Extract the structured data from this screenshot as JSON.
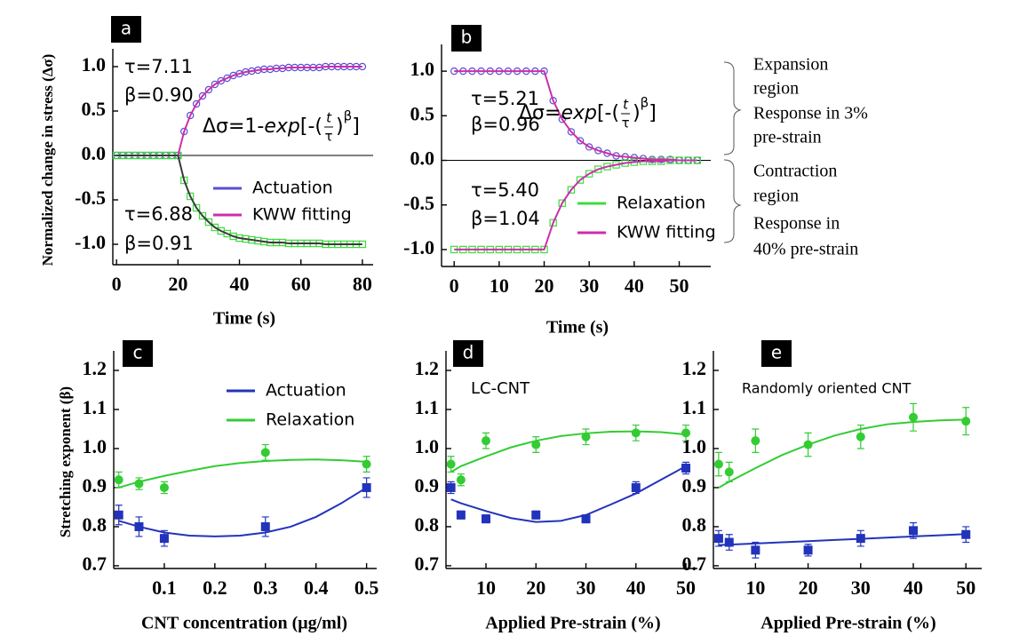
{
  "chart_data": [
    {
      "type": "line",
      "panel_label": "a",
      "ylabel": "Normalized change in stress (Δσ)",
      "xlabel": "Time (s)",
      "xlim": [
        -1.2,
        83.5
      ],
      "ylim": [
        -1.23,
        1.2
      ],
      "xticks": [
        0,
        20,
        40,
        60,
        80
      ],
      "yticks": [
        {
          "value": 1,
          "label": "1.0"
        },
        0.5,
        {
          "value": 0,
          "label": "0.0"
        },
        -0.5,
        {
          "value": -1,
          "label": "-1.0"
        }
      ],
      "zero_line": true,
      "annotations": [
        "τ=7.11",
        "β=0.90",
        "τ=6.88",
        "β=0.91"
      ],
      "equation": {
        "lead": "Δσ=1-",
        "func": "exp",
        "open": "[-(",
        "num": "t",
        "den": "τ",
        "close": ")",
        "power": "β",
        "end": "]"
      },
      "x": [
        0,
        2,
        4,
        6,
        8,
        10,
        12,
        14,
        16,
        18,
        20,
        22,
        24,
        26,
        28,
        30,
        32,
        34,
        36,
        38,
        40,
        42,
        44,
        46,
        48,
        50,
        52,
        54,
        56,
        58,
        60,
        62,
        64,
        66,
        68,
        70,
        72,
        74,
        76,
        78,
        80
      ],
      "series": [
        {
          "name": "Actuation",
          "color": "#5a4fd6",
          "marker": "circle",
          "open": true,
          "values": [
            0,
            0,
            0,
            0,
            0,
            0,
            0,
            0,
            0,
            0,
            0,
            0.27,
            0.45,
            0.58,
            0.67,
            0.74,
            0.8,
            0.84,
            0.87,
            0.9,
            0.92,
            0.94,
            0.95,
            0.96,
            0.97,
            0.97,
            0.98,
            0.98,
            0.99,
            0.99,
            0.99,
            0.99,
            0.99,
            0.99,
            1,
            1,
            1,
            1,
            1,
            1,
            1
          ]
        },
        {
          "name": "KWW fitting",
          "color": "#cc2fa8",
          "line": true,
          "values": [
            0,
            0,
            0,
            0,
            0,
            0,
            0,
            0,
            0,
            0,
            0,
            0.27,
            0.45,
            0.58,
            0.67,
            0.74,
            0.8,
            0.84,
            0.87,
            0.9,
            0.92,
            0.94,
            0.95,
            0.96,
            0.97,
            0.97,
            0.98,
            0.98,
            0.99,
            0.99,
            0.99,
            0.99,
            0.99,
            0.99,
            1,
            1,
            1,
            1,
            1,
            1,
            1
          ]
        },
        {
          "color": "#3ddc3d",
          "marker": "square",
          "open": true,
          "values": [
            0,
            0,
            0,
            0,
            0,
            0,
            0,
            0,
            0,
            0,
            0,
            -0.28,
            -0.46,
            -0.59,
            -0.68,
            -0.75,
            -0.81,
            -0.85,
            -0.88,
            -0.91,
            -0.93,
            -0.94,
            -0.95,
            -0.96,
            -0.97,
            -0.98,
            -0.98,
            -0.98,
            -0.99,
            -0.99,
            -0.99,
            -0.99,
            -0.99,
            -0.99,
            -1,
            -1,
            -1,
            -1,
            -1,
            -1,
            -1
          ]
        },
        {
          "color": "#3a3a3a",
          "line": true,
          "values": [
            0,
            0,
            0,
            0,
            0,
            0,
            0,
            0,
            0,
            0,
            0,
            -0.28,
            -0.46,
            -0.59,
            -0.68,
            -0.75,
            -0.81,
            -0.85,
            -0.88,
            -0.91,
            -0.93,
            -0.94,
            -0.95,
            -0.96,
            -0.97,
            -0.98,
            -0.98,
            -0.98,
            -0.99,
            -0.99,
            -0.99,
            -0.99,
            -0.99,
            -0.99,
            -1,
            -1,
            -1,
            -1,
            -1,
            -1,
            -1
          ]
        }
      ]
    },
    {
      "type": "line",
      "panel_label": "b",
      "xlabel": "Time (s)",
      "xlim": [
        -2.8,
        57
      ],
      "ylim": [
        -1.19,
        1.3
      ],
      "xticks": [
        0,
        10,
        20,
        30,
        40,
        50
      ],
      "yticks": [
        {
          "value": 1,
          "label": "1.0"
        },
        0.5,
        {
          "value": 0,
          "label": "0.0"
        },
        -0.5,
        {
          "value": -1,
          "label": "-1.0"
        }
      ],
      "zero_line": true,
      "annotations": [
        "τ=5.21",
        "β=0.96",
        "τ=5.40",
        "β=1.04"
      ],
      "equation": {
        "lead": "Δσ=",
        "func": "exp",
        "open": "[-(",
        "num": "t",
        "den": "τ",
        "close": ")",
        "power": "β",
        "end": "]"
      },
      "x": [
        0,
        2,
        4,
        6,
        8,
        10,
        12,
        14,
        16,
        18,
        20,
        22,
        24,
        26,
        28,
        30,
        32,
        34,
        36,
        38,
        40,
        42,
        44,
        46,
        48,
        50,
        52,
        54
      ],
      "series": [
        {
          "color": "#5a4fd6",
          "marker": "circle",
          "open": true,
          "values": [
            1,
            1,
            1,
            1,
            1,
            1,
            1,
            1,
            1,
            1,
            1,
            0.67,
            0.46,
            0.32,
            0.22,
            0.15,
            0.11,
            0.08,
            0.05,
            0.04,
            0.03,
            0.02,
            0.01,
            0.01,
            0.01,
            0,
            0,
            0
          ]
        },
        {
          "color": "#cc2fa8",
          "line": true,
          "values": [
            1,
            1,
            1,
            1,
            1,
            1,
            1,
            1,
            1,
            1,
            1,
            0.67,
            0.46,
            0.32,
            0.22,
            0.15,
            0.11,
            0.08,
            0.05,
            0.04,
            0.03,
            0.02,
            0.01,
            0.01,
            0.01,
            0,
            0,
            0
          ]
        },
        {
          "name": "Relaxation",
          "color": "#3ddc3d",
          "marker": "square",
          "open": true,
          "values": [
            -1,
            -1,
            -1,
            -1,
            -1,
            -1,
            -1,
            -1,
            -1,
            -1,
            -1,
            -0.7,
            -0.48,
            -0.33,
            -0.22,
            -0.15,
            -0.1,
            -0.07,
            -0.05,
            -0.03,
            -0.02,
            -0.01,
            -0.01,
            -0.01,
            0,
            0,
            0,
            0
          ]
        },
        {
          "name": "KWW fitting",
          "color": "#cc2fa8",
          "line": true,
          "values": [
            -1,
            -1,
            -1,
            -1,
            -1,
            -1,
            -1,
            -1,
            -1,
            -1,
            -1,
            -0.7,
            -0.48,
            -0.33,
            -0.22,
            -0.15,
            -0.1,
            -0.07,
            -0.05,
            -0.03,
            -0.02,
            -0.01,
            -0.01,
            -0.01,
            0,
            0,
            0,
            0
          ]
        }
      ]
    },
    {
      "type": "scatter",
      "panel_label": "c",
      "ylabel": "Stretching exponent (β)",
      "xlabel": "CNT concentration (μg/ml)",
      "xlim": [
        0,
        0.52
      ],
      "ylim": [
        0.693,
        1.25
      ],
      "xticks": [
        0.1,
        0.2,
        0.3,
        0.4,
        0.5
      ],
      "yticks": [
        0.7,
        0.8,
        0.9,
        {
          "value": 1,
          "label": "1.0"
        },
        1.1,
        1.2
      ],
      "x": [
        0.01,
        0.05,
        0.1,
        0.3,
        0.5
      ],
      "series": [
        {
          "name": "Actuation",
          "color": "#2233bb",
          "marker": "square",
          "values": [
            0.83,
            0.8,
            0.77,
            0.8,
            0.9
          ],
          "errors": [
            0.025,
            0.025,
            0.02,
            0.025,
            0.025
          ]
        },
        {
          "name": "Relaxation",
          "color": "#33cc33",
          "marker": "circle",
          "values": [
            0.92,
            0.91,
            0.9,
            0.99,
            0.96
          ],
          "errors": [
            0.02,
            0.015,
            0.015,
            0.02,
            0.02
          ]
        },
        {
          "color": "#2233bb",
          "line": true,
          "x": [
            0.01,
            0.05,
            0.1,
            0.15,
            0.2,
            0.25,
            0.3,
            0.35,
            0.4,
            0.45,
            0.5
          ],
          "values": [
            0.815,
            0.8,
            0.785,
            0.777,
            0.775,
            0.777,
            0.785,
            0.8,
            0.825,
            0.86,
            0.9
          ]
        },
        {
          "color": "#33cc33",
          "line": true,
          "x": [
            0.01,
            0.05,
            0.1,
            0.15,
            0.2,
            0.25,
            0.3,
            0.35,
            0.4,
            0.45,
            0.5
          ],
          "values": [
            0.9,
            0.915,
            0.93,
            0.943,
            0.955,
            0.963,
            0.968,
            0.971,
            0.972,
            0.97,
            0.966
          ]
        }
      ]
    },
    {
      "type": "scatter",
      "panel_label": "d",
      "xlabel": "Applied Pre-strain (%)",
      "xlim": [
        2,
        52.3
      ],
      "ylim": [
        0.693,
        1.25
      ],
      "xticks": [
        10,
        20,
        30,
        40,
        50
      ],
      "yticks": [
        0.7,
        0.8,
        0.9,
        {
          "value": 1,
          "label": "1.0"
        },
        1.1,
        1.2
      ],
      "annotations": [
        "LC-CNT"
      ],
      "x": [
        3,
        5,
        10,
        20,
        30,
        40,
        50
      ],
      "series": [
        {
          "color": "#2233bb",
          "marker": "square",
          "values": [
            0.9,
            0.83,
            0.82,
            0.83,
            0.82,
            0.9,
            0.95
          ],
          "errors": [
            0.015,
            0.01,
            0.01,
            0.01,
            0.01,
            0.015,
            0.015
          ]
        },
        {
          "color": "#33cc33",
          "marker": "circle",
          "values": [
            0.96,
            0.92,
            1.02,
            1.01,
            1.03,
            1.04,
            1.04
          ],
          "errors": [
            0.02,
            0.015,
            0.02,
            0.02,
            0.02,
            0.02,
            0.02
          ]
        },
        {
          "color": "#2233bb",
          "line": true,
          "x": [
            3,
            5,
            10,
            15,
            20,
            25,
            30,
            35,
            40,
            45,
            50
          ],
          "values": [
            0.87,
            0.86,
            0.84,
            0.822,
            0.812,
            0.815,
            0.83,
            0.857,
            0.885,
            0.92,
            0.955
          ]
        },
        {
          "color": "#33cc33",
          "line": true,
          "x": [
            3,
            5,
            10,
            15,
            20,
            25,
            30,
            35,
            40,
            45,
            50
          ],
          "values": [
            0.94,
            0.955,
            0.98,
            1.003,
            1.02,
            1.032,
            1.039,
            1.043,
            1.044,
            1.042,
            1.036
          ]
        }
      ]
    },
    {
      "type": "scatter",
      "panel_label": "e",
      "xlabel": "Applied Pre-strain (%)",
      "xlim": [
        2,
        53
      ],
      "ylim": [
        0.693,
        1.25
      ],
      "xticks": [
        10,
        20,
        30,
        40,
        50
      ],
      "yticks": [
        0.7,
        0.8,
        0.9,
        {
          "value": 1,
          "label": "1.0"
        },
        1.1,
        1.2
      ],
      "annotations": [
        "Randomly  oriented CNT"
      ],
      "x": [
        3,
        5,
        10,
        20,
        30,
        40,
        50
      ],
      "series": [
        {
          "color": "#2233bb",
          "marker": "square",
          "values": [
            0.77,
            0.76,
            0.74,
            0.74,
            0.77,
            0.79,
            0.78
          ],
          "errors": [
            0.02,
            0.02,
            0.02,
            0.015,
            0.02,
            0.02,
            0.02
          ]
        },
        {
          "color": "#33cc33",
          "marker": "circle",
          "values": [
            0.96,
            0.94,
            1.02,
            1.01,
            1.03,
            1.08,
            1.07
          ],
          "errors": [
            0.03,
            0.025,
            0.03,
            0.03,
            0.03,
            0.035,
            0.035
          ]
        },
        {
          "color": "#2233bb",
          "line": true,
          "x": [
            3,
            5,
            10,
            15,
            20,
            25,
            30,
            35,
            40,
            45,
            50
          ],
          "values": [
            0.753,
            0.754,
            0.757,
            0.76,
            0.763,
            0.766,
            0.769,
            0.772,
            0.775,
            0.778,
            0.781
          ]
        },
        {
          "color": "#33cc33",
          "line": true,
          "x": [
            3,
            5,
            10,
            15,
            20,
            25,
            30,
            35,
            40,
            45,
            50
          ],
          "values": [
            0.9,
            0.915,
            0.95,
            0.983,
            1.01,
            1.033,
            1.05,
            1.062,
            1.068,
            1.072,
            1.074
          ]
        }
      ]
    }
  ],
  "notes": {
    "expansion": [
      "Expansion",
      "region",
      "Response in 3%",
      "pre-strain"
    ],
    "contraction": [
      "Contraction",
      "region",
      "Response in",
      "40% pre-strain"
    ]
  }
}
